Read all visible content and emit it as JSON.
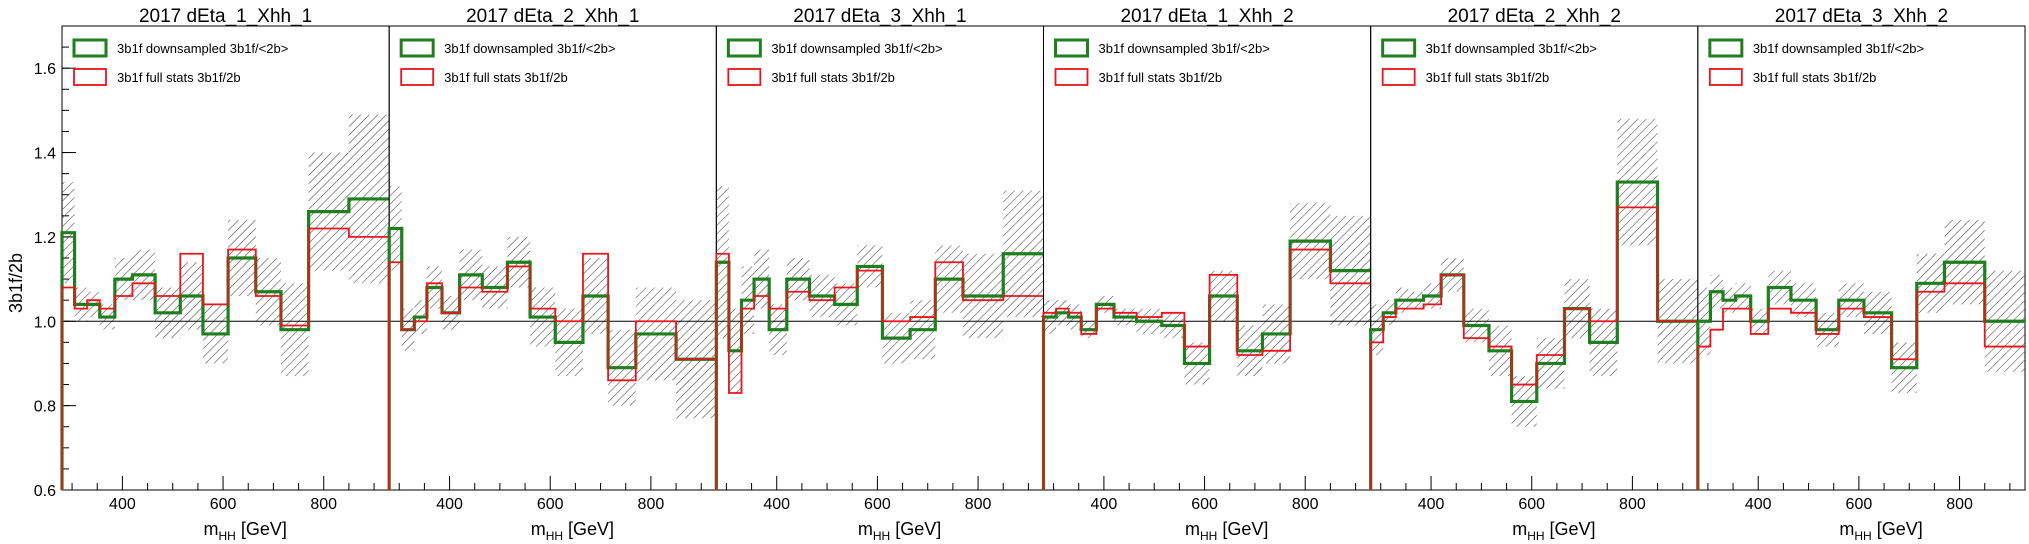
{
  "ylabel": "3b1f/2b",
  "xlabel_main": "m",
  "xlabel_sub": "HH",
  "xlabel_unit": " [GeV]",
  "reference_line": 1.0,
  "colors": {
    "downsampled": "#1f7f1f",
    "fullstats": "#e8151c",
    "band": "#555555",
    "axis": "#000000"
  },
  "legend": {
    "downsampled": "3b1f downsampled 3b1f/<2b>",
    "fullstats": "3b1f full stats 3b1f/2b"
  },
  "chart_data": {
    "type": "line",
    "step": true,
    "xlabel": "m_HH [GeV]",
    "ylabel": "3b1f/2b",
    "ylim": [
      0.6,
      1.7
    ],
    "xlim": [
      280,
      930
    ],
    "x_ticks": [
      400,
      600,
      800
    ],
    "y_ticks": [
      0.6,
      0.8,
      1.0,
      1.2,
      1.4,
      1.6
    ],
    "bin_edges": [
      280,
      305,
      330,
      355,
      385,
      420,
      465,
      515,
      560,
      610,
      665,
      715,
      770,
      850,
      930
    ],
    "panels": [
      {
        "title": "2017 dEta_1_Xhh_1",
        "series": [
          {
            "name": "3b1f downsampled 3b1f/<2b>",
            "values": [
              1.21,
              1.04,
              1.04,
              1.01,
              1.1,
              1.11,
              1.02,
              1.06,
              0.97,
              1.15,
              1.07,
              0.98,
              1.26,
              1.29
            ]
          },
          {
            "name": "3b1f full stats 3b1f/2b",
            "values": [
              1.08,
              1.03,
              1.05,
              1.03,
              1.06,
              1.09,
              1.06,
              1.16,
              1.04,
              1.17,
              1.06,
              0.99,
              1.22,
              1.2
            ]
          }
        ],
        "band_half_width": [
          0.12,
          0.04,
          0.03,
          0.03,
          0.05,
          0.06,
          0.06,
          0.08,
          0.07,
          0.09,
          0.08,
          0.11,
          0.14,
          0.2
        ]
      },
      {
        "title": "2017 dEta_2_Xhh_1",
        "series": [
          {
            "name": "3b1f downsampled 3b1f/<2b>",
            "values": [
              1.22,
              0.98,
              1.01,
              1.08,
              1.02,
              1.11,
              1.08,
              1.14,
              1.01,
              0.95,
              1.06,
              0.89,
              0.97,
              0.91
            ]
          },
          {
            "name": "3b1f full stats 3b1f/2b",
            "values": [
              1.14,
              0.98,
              1.0,
              1.09,
              1.02,
              1.08,
              1.07,
              1.13,
              1.03,
              1.0,
              1.16,
              0.86,
              1.0,
              0.91
            ]
          }
        ],
        "band_half_width": [
          0.1,
          0.05,
          0.04,
          0.05,
          0.04,
          0.06,
          0.05,
          0.06,
          0.07,
          0.08,
          0.09,
          0.09,
          0.11,
          0.14
        ]
      },
      {
        "title": "2017 dEta_3_Xhh_1",
        "series": [
          {
            "name": "3b1f downsampled 3b1f/<2b>",
            "values": [
              1.14,
              0.93,
              1.05,
              1.1,
              0.98,
              1.1,
              1.06,
              1.04,
              1.13,
              0.96,
              0.98,
              1.1,
              1.06,
              1.16
            ]
          },
          {
            "name": "3b1f full stats 3b1f/2b",
            "values": [
              1.16,
              0.83,
              1.03,
              1.06,
              1.03,
              1.07,
              1.05,
              1.08,
              1.12,
              1.0,
              1.01,
              1.14,
              1.05,
              1.06
            ]
          }
        ],
        "band_half_width": [
          0.18,
          0.1,
          0.08,
          0.07,
          0.06,
          0.05,
          0.05,
          0.05,
          0.05,
          0.06,
          0.07,
          0.08,
          0.1,
          0.15
        ]
      },
      {
        "title": "2017 dEta_1_Xhh_2",
        "series": [
          {
            "name": "3b1f downsampled 3b1f/<2b>",
            "values": [
              1.01,
              1.02,
              1.01,
              0.98,
              1.04,
              1.01,
              1.0,
              0.99,
              0.9,
              1.06,
              0.93,
              0.97,
              1.19,
              1.12
            ]
          },
          {
            "name": "3b1f full stats 3b1f/2b",
            "values": [
              1.02,
              1.03,
              1.02,
              0.97,
              1.03,
              1.02,
              1.01,
              1.02,
              0.94,
              1.11,
              0.92,
              0.93,
              1.17,
              1.09
            ]
          }
        ],
        "band_half_width": [
          0.04,
          0.03,
          0.03,
          0.02,
          0.02,
          0.02,
          0.03,
          0.03,
          0.05,
          0.06,
          0.06,
          0.07,
          0.09,
          0.13
        ]
      },
      {
        "title": "2017 dEta_2_Xhh_2",
        "series": [
          {
            "name": "3b1f downsampled 3b1f/<2b>",
            "values": [
              0.98,
              1.02,
              1.05,
              1.05,
              1.06,
              1.11,
              0.99,
              0.93,
              0.81,
              0.9,
              1.03,
              0.95,
              1.33,
              1.0
            ]
          },
          {
            "name": "3b1f full stats 3b1f/2b",
            "values": [
              0.95,
              1.01,
              1.03,
              1.03,
              1.04,
              1.11,
              0.96,
              0.94,
              0.85,
              0.92,
              1.03,
              1.0,
              1.27,
              1.0
            ]
          }
        ],
        "band_half_width": [
          0.06,
          0.03,
          0.03,
          0.02,
          0.03,
          0.04,
          0.04,
          0.06,
          0.06,
          0.06,
          0.07,
          0.08,
          0.15,
          0.1
        ]
      },
      {
        "title": "2017 dEta_3_Xhh_2",
        "series": [
          {
            "name": "3b1f downsampled 3b1f/<2b>",
            "values": [
              1.0,
              1.07,
              1.05,
              1.06,
              1.0,
              1.08,
              1.05,
              0.98,
              1.05,
              1.02,
              0.89,
              1.09,
              1.14,
              1.0
            ]
          },
          {
            "name": "3b1f full stats 3b1f/2b",
            "values": [
              0.94,
              0.98,
              1.03,
              1.03,
              0.97,
              1.03,
              1.02,
              0.97,
              1.03,
              1.01,
              0.91,
              1.07,
              1.09,
              0.94
            ]
          }
        ],
        "band_half_width": [
          0.08,
          0.04,
          0.03,
          0.03,
          0.03,
          0.04,
          0.04,
          0.04,
          0.04,
          0.05,
          0.06,
          0.07,
          0.1,
          0.12
        ]
      }
    ]
  }
}
